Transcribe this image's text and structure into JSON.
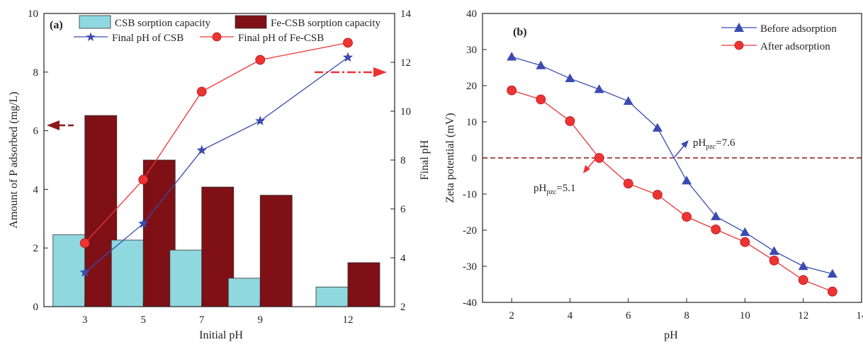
{
  "chart_data": [
    {
      "type": "bar",
      "panel_label": "(a)",
      "xlabel": "Initial pH",
      "ylabel": "Amount of P adsorbed (mg/L)",
      "y2label": "Final pH",
      "categories": [
        "3",
        "5",
        "7",
        "9",
        "12"
      ],
      "x_positions": [
        3,
        5,
        7,
        9,
        12
      ],
      "xlim": [
        1.6,
        13.6
      ],
      "ylim": [
        0,
        10
      ],
      "y_ticks": [
        0,
        2,
        4,
        6,
        8,
        10
      ],
      "y2lim": [
        2,
        14
      ],
      "y2_ticks": [
        2,
        4,
        6,
        8,
        10,
        12,
        14
      ],
      "bar_series": [
        {
          "name": "CSB sorption capacity",
          "values": [
            2.45,
            2.27,
            1.93,
            0.97,
            0.67
          ],
          "color": "#8fd8df"
        },
        {
          "name": "Fe-CSB sorption capacity",
          "values": [
            6.52,
            5.0,
            4.08,
            3.8,
            1.5
          ],
          "color": "#7e1016"
        }
      ],
      "line_series": [
        {
          "name": "Final pH of CSB",
          "axis": "right",
          "values": [
            3.4,
            5.4,
            8.4,
            9.6,
            12.2
          ],
          "color": "#3a4bb0",
          "marker": "star"
        },
        {
          "name": "Final pH of Fe-CSB",
          "axis": "right",
          "values": [
            4.6,
            7.2,
            10.8,
            12.1,
            12.8
          ],
          "color": "#ee3333",
          "marker": "circle"
        }
      ],
      "annotations": [
        {
          "type": "arrow",
          "direction": "left",
          "indicates": "left axis",
          "color": "#8b1a1a"
        },
        {
          "type": "arrow",
          "direction": "right",
          "indicates": "right axis",
          "color": "#ee3333"
        }
      ],
      "grid": false,
      "legend_position": "top"
    },
    {
      "type": "line",
      "panel_label": "(b)",
      "xlabel": "pH",
      "ylabel": "Zeta potential (mV)",
      "xlim": [
        1,
        14
      ],
      "x_ticks": [
        2,
        4,
        6,
        8,
        10,
        12,
        14
      ],
      "ylim": [
        -40,
        40
      ],
      "y_ticks": [
        -40,
        -30,
        -20,
        -10,
        0,
        10,
        20,
        30,
        40
      ],
      "series": [
        {
          "name": "Before adsorption",
          "x": [
            2,
            3,
            4,
            5,
            6,
            7,
            8,
            9,
            10,
            11,
            12,
            13
          ],
          "values": [
            28,
            25.6,
            22,
            19,
            15.7,
            8.3,
            -6.3,
            -16.2,
            -20.6,
            -25.8,
            -30,
            -32.1
          ],
          "color": "#3a4bb0",
          "marker": "triangle"
        },
        {
          "name": "After adsorption",
          "x": [
            2,
            3,
            4,
            5,
            6,
            7,
            8,
            9,
            10,
            11,
            12,
            13
          ],
          "values": [
            18.7,
            16.2,
            10.2,
            0,
            -7.1,
            -10.2,
            -16.3,
            -19.8,
            -23.3,
            -28.4,
            -33.8,
            -37
          ],
          "color": "#ee3333",
          "marker": "circle"
        }
      ],
      "reference_line": {
        "y": 0,
        "color": "#8b1a1a",
        "style": "dashed"
      },
      "annotations": [
        {
          "text_main": "pH",
          "text_sub": "pzc",
          "text_tail": "=7.6",
          "x": 7.6,
          "y": 0
        },
        {
          "text_main": "pH",
          "text_sub": "pzc",
          "text_tail": "=5.1",
          "x": 5.1,
          "y": 0
        }
      ],
      "grid": false,
      "legend_position": "top-right"
    }
  ]
}
